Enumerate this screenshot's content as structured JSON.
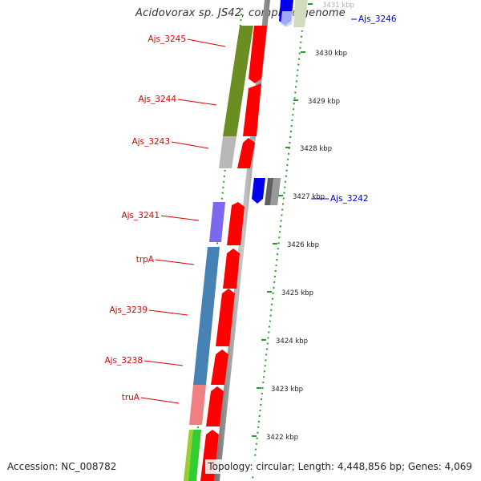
{
  "title": "Acidovorax sp. JS42, complete genome",
  "footer": {
    "accession": "Accession: NC_008782",
    "topology": "Topology: circular; Length: 4,448,856 bp; Genes: 4,069"
  },
  "colors": {
    "forward_gene": "#ff0000",
    "reverse_gene": "#ff0000",
    "label_red": "#dd0000",
    "label_blue": "#0000cc",
    "backbone": "#a0a0a0",
    "ruler": "#2a9a2a"
  },
  "ruler": [
    {
      "label": "3431 kbp"
    },
    {
      "label": "3430 kbp"
    },
    {
      "label": "3429 kbp"
    },
    {
      "label": "3428 kbp"
    },
    {
      "label": "3427 kbp"
    },
    {
      "label": "3426 kbp"
    },
    {
      "label": "3425 kbp"
    },
    {
      "label": "3424 kbp"
    },
    {
      "label": "3423 kbp"
    },
    {
      "label": "3422 kbp"
    }
  ],
  "gene_labels": [
    {
      "text": "Ajs_3245",
      "color": "#dd0000"
    },
    {
      "text": "Ajs_3244",
      "color": "#dd0000"
    },
    {
      "text": "Ajs_3243",
      "color": "#dd0000"
    },
    {
      "text": "Ajs_3241",
      "color": "#dd0000"
    },
    {
      "text": "trpA",
      "color": "#dd0000"
    },
    {
      "text": "Ajs_3239",
      "color": "#dd0000"
    },
    {
      "text": "Ajs_3238",
      "color": "#dd0000"
    },
    {
      "text": "truA",
      "color": "#dd0000"
    },
    {
      "text": "Ajs_3246",
      "color": "#0000cc"
    },
    {
      "text": "Ajs_3242",
      "color": "#0000cc"
    }
  ],
  "cog_blocks": [
    {
      "category": "olive",
      "color": "#6b8e23"
    },
    {
      "category": "grey",
      "color": "#b8b8b8"
    },
    {
      "category": "purple",
      "color": "#7b68ee"
    },
    {
      "category": "steelblue",
      "color": "#4682b4"
    },
    {
      "category": "pink",
      "color": "#f08080"
    },
    {
      "category": "green",
      "color": "#32cd32"
    }
  ]
}
